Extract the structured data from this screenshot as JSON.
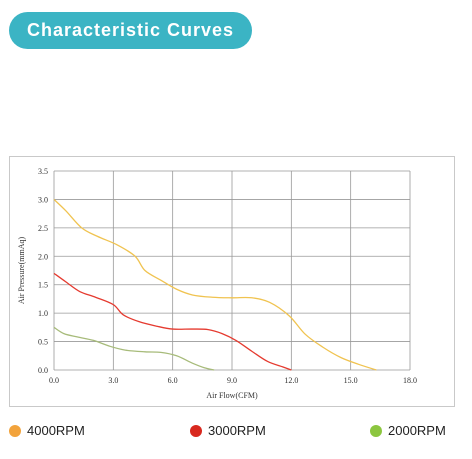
{
  "header": {
    "title": "Characteristic Curves"
  },
  "colors": {
    "title_bg": "#3bb4c4",
    "grid": "#999999"
  },
  "chart_data": {
    "type": "line",
    "xlabel": "Air Flow(CFM)",
    "ylabel": "Air Pressure(mmAq)",
    "xlim": [
      0,
      18
    ],
    "ylim": [
      0,
      3.5
    ],
    "xticks": [
      "0.0",
      "3.0",
      "6.0",
      "9.0",
      "12.0",
      "15.0",
      "18.0"
    ],
    "yticks": [
      "0.0",
      "0.5",
      "1.0",
      "1.5",
      "2.0",
      "2.5",
      "3.0",
      "3.5"
    ],
    "grid": true,
    "legend_position": "bottom",
    "series": [
      {
        "name": "4000RPM",
        "color": "#f0c350",
        "legend_color": "#f2a33c",
        "x": [
          0,
          0.6,
          1.4,
          2.2,
          3.2,
          4.1,
          4.6,
          5.4,
          6.2,
          7.0,
          8.0,
          9.0,
          10.0,
          10.9,
          11.9,
          12.7,
          13.6,
          14.5,
          15.4,
          16.3
        ],
        "y": [
          3.0,
          2.8,
          2.5,
          2.35,
          2.2,
          2.0,
          1.75,
          1.58,
          1.42,
          1.32,
          1.28,
          1.27,
          1.27,
          1.19,
          0.95,
          0.63,
          0.4,
          0.22,
          0.1,
          0.0
        ]
      },
      {
        "name": "3000RPM",
        "color": "#e53a2f",
        "legend_color": "#d8281e",
        "x": [
          0,
          0.6,
          1.3,
          2.1,
          3.0,
          3.5,
          4.3,
          5.2,
          6.0,
          7.0,
          7.8,
          8.5,
          9.2,
          10.0,
          10.8,
          11.6,
          12.0
        ],
        "y": [
          1.7,
          1.55,
          1.38,
          1.28,
          1.15,
          0.97,
          0.85,
          0.77,
          0.72,
          0.72,
          0.71,
          0.64,
          0.52,
          0.33,
          0.15,
          0.05,
          0.0
        ]
      },
      {
        "name": "2000RPM",
        "color": "#a7bb7a",
        "legend_color": "#8cc63f",
        "x": [
          0,
          0.5,
          1.2,
          2.0,
          2.8,
          3.6,
          4.6,
          5.4,
          6.2,
          7.0,
          7.6,
          8.1
        ],
        "y": [
          0.75,
          0.64,
          0.58,
          0.52,
          0.42,
          0.35,
          0.32,
          0.31,
          0.25,
          0.12,
          0.04,
          0.0
        ]
      }
    ]
  }
}
